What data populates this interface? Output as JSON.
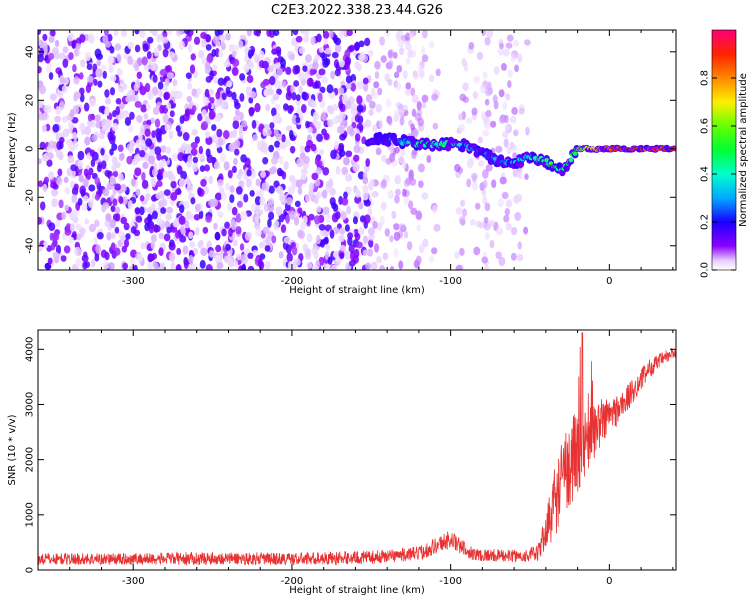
{
  "title": "C2E3.2022.338.23.44.G26",
  "chart_data": [
    {
      "type": "heatmap",
      "xlabel": "Height of straight line (km)",
      "ylabel": "Frequency (Hz)",
      "xlim": [
        -360,
        42
      ],
      "ylim": [
        -50,
        49
      ],
      "xticks": [
        -300,
        -200,
        -100,
        0
      ],
      "yticks": [
        -40,
        -20,
        0,
        20,
        40
      ],
      "colorbar": {
        "label": "Normalized spectral amplitude",
        "range": [
          0.0,
          1.0
        ],
        "ticks": [
          0.0,
          0.2,
          0.4,
          0.6,
          0.8
        ],
        "tick_labels": [
          "0.0",
          "0.2",
          "0.4",
          "0.6",
          "0.8"
        ],
        "colormap": "rainbow"
      },
      "signal_track": {
        "x": [
          -150,
          -140,
          -130,
          -120,
          -110,
          -100,
          -90,
          -80,
          -70,
          -60,
          -50,
          -40,
          -35,
          -30,
          -25,
          -20,
          -10,
          0,
          10,
          20,
          30,
          40
        ],
        "frequency": [
          4,
          4,
          3,
          2,
          2,
          2,
          1,
          -2,
          -5,
          -6,
          -3,
          -5,
          -7,
          -9,
          -5,
          0,
          0,
          0,
          0,
          0,
          0,
          0
        ],
        "amplitude": [
          0.15,
          0.2,
          0.3,
          0.4,
          0.45,
          0.45,
          0.3,
          0.25,
          0.3,
          0.3,
          0.35,
          0.45,
          0.5,
          0.45,
          0.5,
          0.55,
          0.75,
          0.85,
          0.9,
          0.9,
          0.9,
          0.9
        ]
      },
      "noise_floor_amplitude": 0.1
    },
    {
      "type": "line",
      "xlabel": "Height of straight line (km)",
      "ylabel": "SNR (10 * v/v)",
      "xlim": [
        -360,
        42
      ],
      "ylim": [
        0,
        4350
      ],
      "xticks": [
        -300,
        -200,
        -100,
        0
      ],
      "yticks": [
        0,
        1000,
        2000,
        3000,
        4000
      ],
      "color": "#e83232",
      "series": [
        {
          "x": [
            -360,
            -300,
            -250,
            -200,
            -150,
            -120,
            -105,
            -100,
            -95,
            -85,
            -70,
            -55,
            -45,
            -40,
            -35,
            -30,
            -25,
            -20,
            -15,
            -10,
            -5,
            0,
            5,
            10,
            15,
            20,
            25,
            30,
            35,
            42
          ],
          "y": [
            200,
            200,
            210,
            200,
            230,
            300,
            500,
            560,
            450,
            280,
            260,
            250,
            300,
            700,
            1200,
            1600,
            2000,
            2100,
            2300,
            2500,
            2700,
            2800,
            2900,
            3050,
            3250,
            3450,
            3650,
            3750,
            3850,
            3950
          ],
          "spread": [
            220,
            220,
            230,
            230,
            240,
            260,
            320,
            360,
            300,
            240,
            230,
            230,
            300,
            700,
            1300,
            1500,
            1700,
            1500,
            1300,
            1000,
            900,
            700,
            600,
            550,
            450,
            400,
            350,
            300,
            250,
            250
          ]
        }
      ]
    }
  ]
}
